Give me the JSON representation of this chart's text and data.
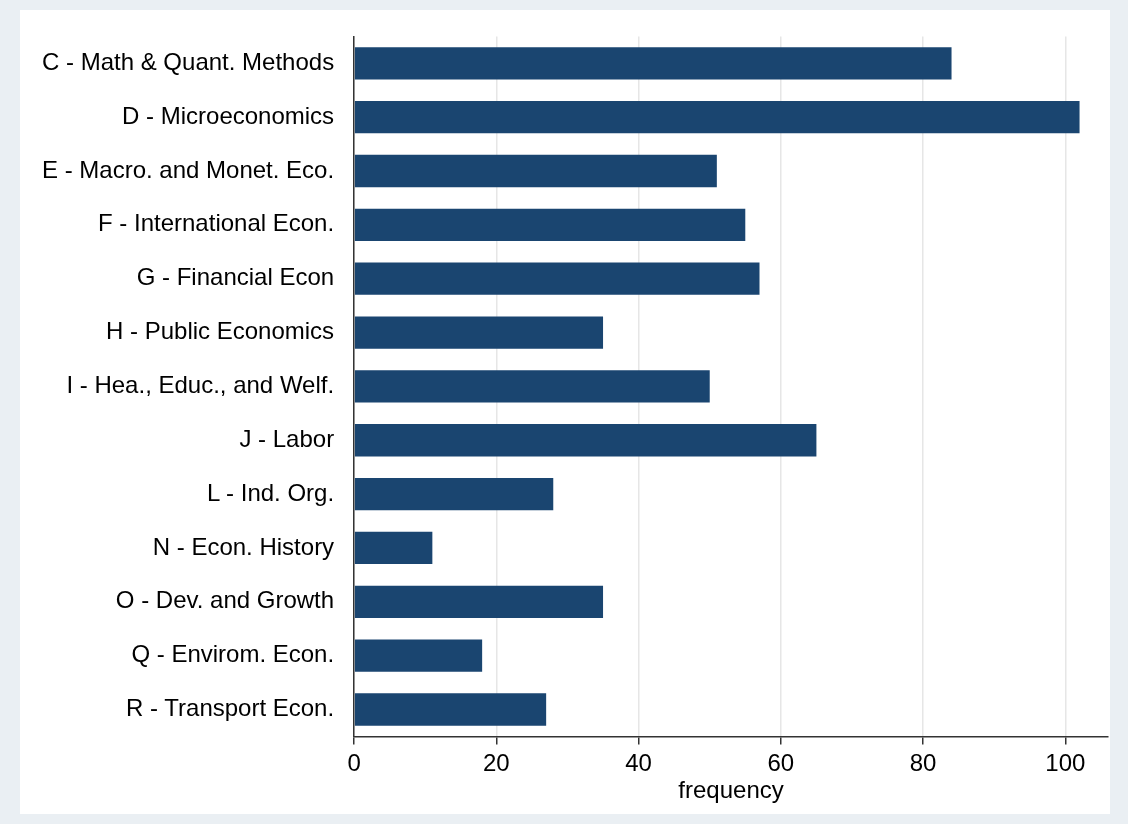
{
  "chart_data": {
    "type": "bar",
    "orientation": "horizontal",
    "xlabel": "frequency",
    "categories": [
      "C - Math & Quant. Methods",
      "D - Microeconomics",
      "E - Macro. and Monet. Eco.",
      "F - International Econ.",
      "G - Financial Econ",
      "H - Public Economics",
      "I - Hea., Educ., and Welf.",
      "J - Labor",
      "L - Ind. Org.",
      "N - Econ. History",
      "O - Dev. and Growth",
      "Q - Envirom. Econ.",
      "R - Transport Econ."
    ],
    "values": [
      84,
      102,
      51,
      55,
      57,
      35,
      50,
      65,
      28,
      11,
      35,
      18,
      27
    ],
    "color": "#1a4570",
    "xlim": [
      0,
      106
    ],
    "xticks": [
      0,
      20,
      40,
      60,
      80,
      100
    ],
    "grid": "x"
  }
}
